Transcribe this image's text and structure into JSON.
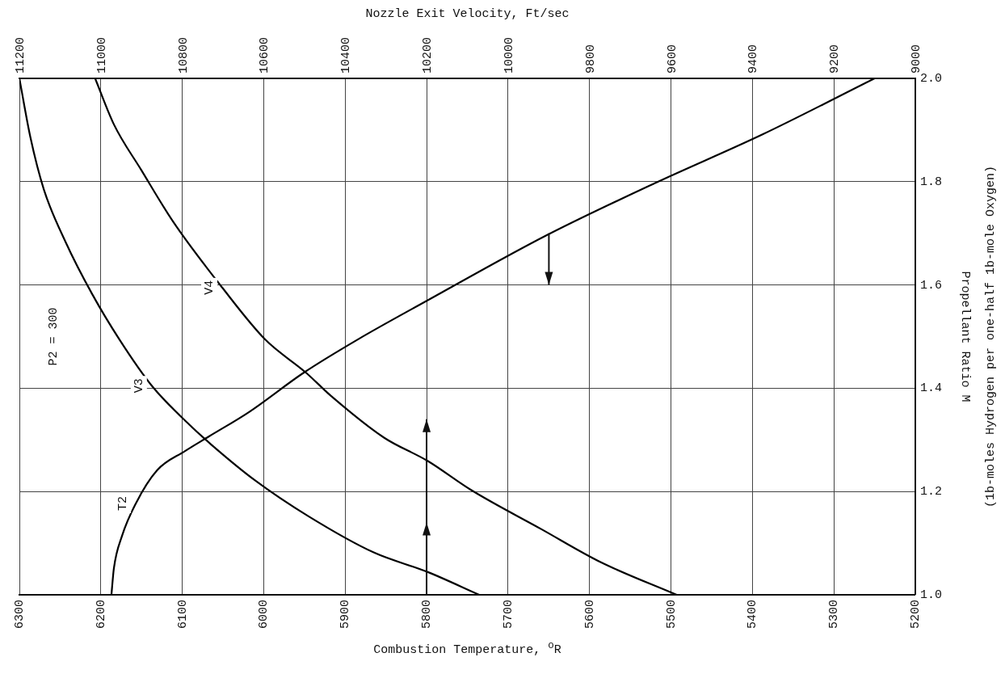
{
  "chart_data": {
    "type": "line",
    "xlabel": "Combustion Temperature, $^{o}$R",
    "x2label": "Nozzle Exit Velocity, Ft/sec",
    "ylabel": "Propellant Ratio M",
    "annotations": [
      "P2 = 300",
      "(1b-moles Hydrogen per one-half 1b-mole Oxygen)"
    ],
    "xlim": [
      6300,
      5200
    ],
    "xticks": [
      6300,
      6200,
      6100,
      6000,
      5900,
      5800,
      5700,
      5600,
      5500,
      5400,
      5300,
      5200
    ],
    "x2lim": [
      11200,
      9000
    ],
    "x2ticks": [
      11200,
      11000,
      10800,
      10600,
      10400,
      10200,
      10000,
      9800,
      9600,
      9400,
      9200,
      9000
    ],
    "ylim": [
      1,
      2
    ],
    "yticks": [
      {
        "value": 1,
        "label": "1.0"
      },
      {
        "value": 1.2,
        "label": "1.2"
      },
      {
        "value": 1.4,
        "label": "1.4"
      },
      {
        "value": 1.6,
        "label": "1.6"
      },
      {
        "value": 1.8,
        "label": "1.8"
      },
      {
        "value": 2,
        "label": "2.0"
      }
    ],
    "grid": true,
    "legend": false,
    "marker": "none",
    "line_style": "solid",
    "series": [
      {
        "name": "T2",
        "color": "#000000",
        "x": [
          6187,
          6184,
          6174,
          6157,
          6131,
          6097,
          6068,
          6018,
          5951,
          5885,
          5799,
          5653,
          5520,
          5387,
          5250
        ],
        "values": [
          1.0,
          1.051,
          1.114,
          1.177,
          1.241,
          1.278,
          1.306,
          1.354,
          1.43,
          1.494,
          1.57,
          1.696,
          1.797,
          1.892,
          2.0
        ]
      },
      {
        "name": "V3",
        "color": "#000000",
        "axis": "x2",
        "x": [
          11200,
          11173,
          11140,
          11087,
          11021,
          10954,
          10875,
          10782,
          10729,
          10622,
          10490,
          10330,
          10197,
          10071
        ],
        "values": [
          2.0,
          1.886,
          1.785,
          1.684,
          1.582,
          1.494,
          1.405,
          1.329,
          1.291,
          1.222,
          1.152,
          1.082,
          1.044,
          1.0
        ]
      },
      {
        "name": "V4",
        "color": "#000000",
        "axis": "x2",
        "x": [
          11014,
          10968,
          10901,
          10822,
          10702,
          10596,
          10496,
          10436,
          10304,
          10197,
          10091,
          9918,
          9772,
          9586
        ],
        "values": [
          2.0,
          1.911,
          1.823,
          1.722,
          1.595,
          1.494,
          1.43,
          1.386,
          1.304,
          1.259,
          1.203,
          1.127,
          1.063,
          1.0
        ]
      }
    ]
  }
}
